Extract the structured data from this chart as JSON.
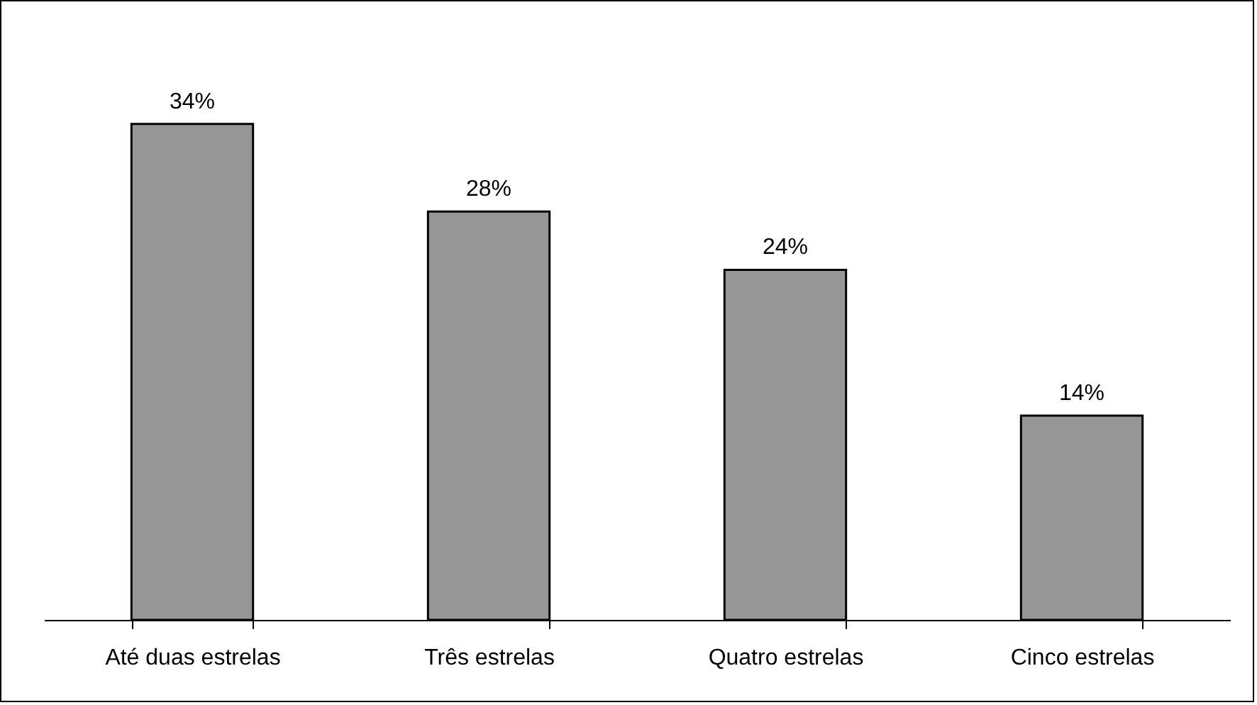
{
  "chart_data": {
    "type": "bar",
    "categories": [
      "Até duas estrelas",
      "Três estrelas",
      "Quatro estrelas",
      "Cinco estrelas"
    ],
    "values": [
      34,
      28,
      24,
      14
    ],
    "value_labels": [
      "34%",
      "28%",
      "24%",
      "14%"
    ],
    "color": "#969696"
  }
}
